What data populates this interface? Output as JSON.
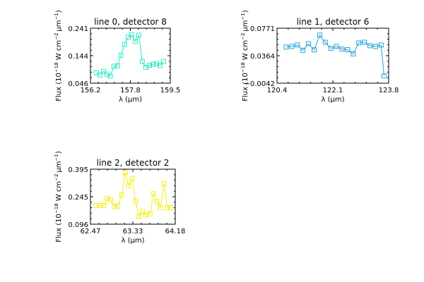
{
  "chart_data": [
    {
      "type": "line",
      "title": "line 0, detector 8",
      "xlabel": "λ (μm)",
      "ylabel": "Flux (10^-18 W cm^-2 μm^-1)",
      "ylabel_parts": [
        "Flux (10",
        "−18",
        " W cm",
        "−2",
        "μm",
        "−1",
        ")"
      ],
      "xlim": [
        156.2,
        159.5
      ],
      "ylim": [
        0.046,
        0.241
      ],
      "xticks": [
        "156.2",
        "157.8",
        "159.5"
      ],
      "yticks": [
        "0.046",
        "0.144",
        "0.241"
      ],
      "color": "#33e6c6",
      "marker": "square",
      "series": [
        {
          "x": [
            156.44,
            156.59,
            156.74,
            156.88,
            157.02,
            157.17,
            157.32,
            157.46,
            157.61,
            157.76,
            157.9,
            158.05,
            158.2,
            158.34,
            158.49,
            158.64,
            158.78,
            158.93,
            159.07,
            159.22
          ],
          "values": [
            0.0825,
            0.075,
            0.088,
            0.078,
            0.071,
            0.106,
            0.108,
            0.145,
            0.183,
            0.209,
            0.218,
            0.194,
            0.216,
            0.123,
            0.102,
            0.109,
            0.113,
            0.115,
            0.109,
            0.123
          ]
        }
      ]
    },
    {
      "type": "line",
      "title": "line 1, detector 6",
      "xlabel": "λ (μm)",
      "ylabel": "Flux (10^-18 W cm^-2 μm^-1)",
      "ylabel_parts": [
        "Flux (10",
        "−18",
        " W cm",
        "−2",
        "μm",
        "−1",
        ")"
      ],
      "xlim": [
        120.4,
        123.8
      ],
      "ylim": [
        -0.0042,
        0.0771
      ],
      "xticks": [
        "120.4",
        "122.1",
        "123.8"
      ],
      "yticks": [
        "−0.0042",
        "0.0364",
        "0.0771"
      ],
      "color": "#2aa3d8",
      "marker": "square",
      "series": [
        {
          "x": [
            120.68,
            120.85,
            121.02,
            121.19,
            121.36,
            121.53,
            121.7,
            121.87,
            122.04,
            122.21,
            122.38,
            122.55,
            122.72,
            122.89,
            123.06,
            123.23,
            123.4,
            123.57
          ],
          "values": [
            0.0492,
            0.0502,
            0.0523,
            0.0444,
            0.0543,
            0.0451,
            0.0669,
            0.0563,
            0.0472,
            0.0502,
            0.0462,
            0.0453,
            0.0392,
            0.0553,
            0.0563,
            0.0512,
            0.0502,
            0.0522
          ]
        },
        {
          "x": [
            123.57,
            123.66
          ],
          "values": [
            0.0522,
            0.0066
          ]
        }
      ]
    },
    {
      "type": "line",
      "title": "line 2, detector 2",
      "xlabel": "λ (μm)",
      "ylabel": "Flux (10^-18 W cm^-2 μm^-1)",
      "ylabel_parts": [
        "Flux (10",
        "−18",
        " W cm",
        "−2",
        "μm",
        "−1",
        ")"
      ],
      "xlim": [
        62.47,
        64.18
      ],
      "ylim": [
        0.096,
        0.395
      ],
      "xticks": [
        "62.47",
        "63.33",
        "64.18"
      ],
      "yticks": [
        "0.096",
        "0.245",
        "0.395"
      ],
      "color": "#f2ee18",
      "marker": "square",
      "series": [
        {
          "x": [
            62.58,
            62.66,
            62.74,
            62.81,
            62.88,
            62.95,
            63.02,
            63.1,
            63.17,
            63.24,
            63.31,
            63.38,
            63.45,
            63.52,
            63.59,
            63.67,
            63.74,
            63.81,
            63.88,
            63.95,
            64.02,
            64.09
          ],
          "values": [
            0.197,
            0.199,
            0.197,
            0.237,
            0.229,
            0.192,
            0.195,
            0.255,
            0.377,
            0.305,
            0.345,
            0.219,
            0.139,
            0.166,
            0.146,
            0.153,
            0.262,
            0.218,
            0.186,
            0.316,
            0.185,
            0.186
          ]
        }
      ]
    }
  ]
}
